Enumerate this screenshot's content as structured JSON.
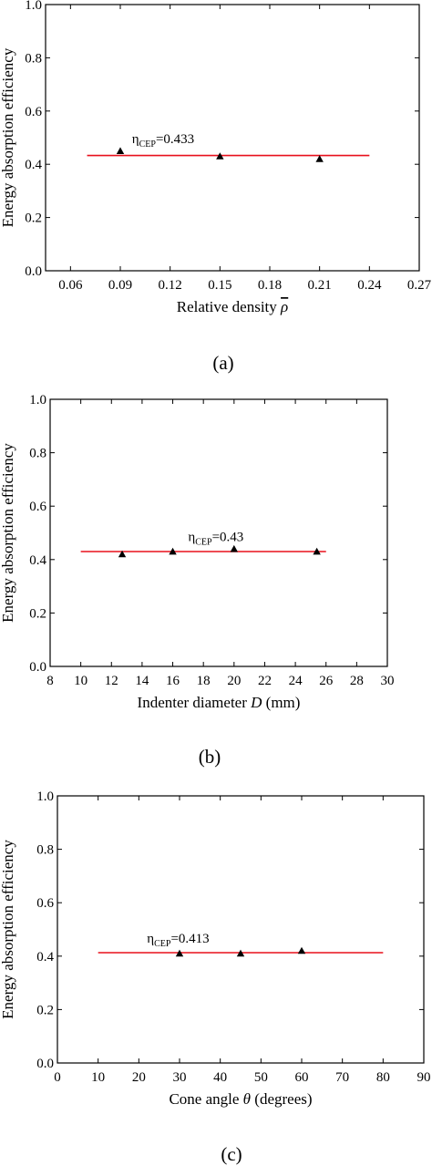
{
  "chart_data": [
    {
      "type": "scatter",
      "panel_label": "(a)",
      "xlabel": "Relative density",
      "xlabel_symbol": "ρ",
      "xlabel_unit": "",
      "ylabel": "Energy absorption efficiency",
      "xlim": [
        0.045,
        0.27
      ],
      "ylim": [
        0,
        1.0
      ],
      "xticks": [
        "0.06",
        "0.09",
        "0.12",
        "0.15",
        "0.18",
        "0.21",
        "0.24",
        "0.27"
      ],
      "yticks": [
        "0.0",
        "0.2",
        "0.4",
        "0.6",
        "0.8",
        "1.0"
      ],
      "grid": false,
      "points": [
        {
          "x": 0.09,
          "y": 0.45
        },
        {
          "x": 0.15,
          "y": 0.43
        },
        {
          "x": 0.21,
          "y": 0.42
        }
      ],
      "reference_line": {
        "y": 0.433,
        "x_start": 0.07,
        "x_end": 0.24,
        "color": "#e8101c"
      },
      "annotation": {
        "symbol": "η",
        "subscript": "CEP",
        "text": "=0.433",
        "x": 0.097,
        "y": 0.48
      }
    },
    {
      "type": "scatter",
      "panel_label": "(b)",
      "xlabel": "Indenter diameter",
      "xlabel_symbol": "D",
      "xlabel_unit": "(mm)",
      "ylabel": "Energy absorption efficiency",
      "xlim": [
        8,
        30
      ],
      "ylim": [
        0,
        1.0
      ],
      "xticks": [
        "8",
        "10",
        "12",
        "14",
        "16",
        "18",
        "20",
        "22",
        "24",
        "26",
        "28",
        "30"
      ],
      "yticks": [
        "0.0",
        "0.2",
        "0.4",
        "0.6",
        "0.8",
        "1.0"
      ],
      "grid": false,
      "points": [
        {
          "x": 12.7,
          "y": 0.42
        },
        {
          "x": 16.0,
          "y": 0.43
        },
        {
          "x": 20.0,
          "y": 0.44
        },
        {
          "x": 25.4,
          "y": 0.43
        }
      ],
      "reference_line": {
        "y": 0.43,
        "x_start": 10,
        "x_end": 26,
        "color": "#e8101c"
      },
      "annotation": {
        "symbol": "η",
        "subscript": "CEP",
        "text": "=0.43",
        "x": 17.0,
        "y": 0.47
      }
    },
    {
      "type": "scatter",
      "panel_label": "(c)",
      "xlabel": "Cone angle",
      "xlabel_symbol": "θ",
      "xlabel_unit": "(degrees)",
      "ylabel": "Energy absorption efficiency",
      "xlim": [
        0,
        90
      ],
      "ylim": [
        0,
        1.0
      ],
      "xticks": [
        "0",
        "10",
        "20",
        "30",
        "40",
        "50",
        "60",
        "70",
        "80",
        "90"
      ],
      "yticks": [
        "0.0",
        "0.2",
        "0.4",
        "0.6",
        "0.8",
        "1.0"
      ],
      "grid": false,
      "points": [
        {
          "x": 30,
          "y": 0.41
        },
        {
          "x": 45,
          "y": 0.41
        },
        {
          "x": 60,
          "y": 0.42
        }
      ],
      "reference_line": {
        "y": 0.413,
        "x_start": 10,
        "x_end": 80,
        "color": "#e8101c"
      },
      "annotation": {
        "symbol": "η",
        "subscript": "CEP",
        "text": "=0.413",
        "x": 22,
        "y": 0.45
      }
    }
  ]
}
